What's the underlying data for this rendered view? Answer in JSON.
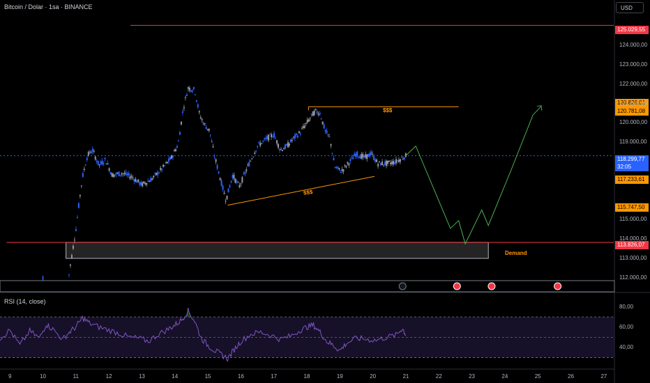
{
  "header": {
    "title": "Bitcoin / Dolar · 1sa · BINANCE",
    "currency": "USD"
  },
  "rsi_label": "RSI (14, close)",
  "colors": {
    "background": "#000000",
    "candle_up": "#2962ff",
    "candle_down": "#9598a1",
    "resistance_line": "#f23645",
    "liquidity_line": "#ff9800",
    "projection": "#4caf50",
    "current_price": "#2962ff",
    "rsi_line": "#7e57c2",
    "rsi_band": "#2a1e4a"
  },
  "price_tags": {
    "top_resistance": "125.029,55",
    "high_liquidity_1": "120.829,01",
    "high_liquidity_2": "120.781,08",
    "current_price": "118.299,77",
    "countdown": "32:05",
    "low_liquidity_1": "117.233,61",
    "low_liquidity_2": "115.747,50",
    "demand_level": "113.826,07"
  },
  "annotations": {
    "upper_liquidity": "$$$",
    "lower_liquidity": "$$$",
    "demand_zone": "Demand"
  },
  "events": [
    "lightning-icon",
    "us-flag-icon",
    "us-flag-icon",
    "us-flag-icon"
  ],
  "chart_data": {
    "type": "candlestick",
    "title": "Bitcoin / Dolar · 1sa · BINANCE",
    "x_ticks": [
      "9",
      "10",
      "11",
      "12",
      "13",
      "14",
      "15",
      "16",
      "17",
      "18",
      "19",
      "20",
      "21",
      "22",
      "23",
      "24",
      "25",
      "26",
      "27"
    ],
    "y_ticks": [
      "124.000,00",
      "123.000,00",
      "122.000,00",
      "121.000,00",
      "120.000,00",
      "119.000,00",
      "115.000,00",
      "114.000,00",
      "113.000,00",
      "112.000,00"
    ],
    "ylim": [
      111600,
      125800
    ],
    "xlim": [
      8.7,
      27.3
    ],
    "price_path": [
      [
        10.75,
        111700
      ],
      [
        10.9,
        113400
      ],
      [
        11.0,
        114500
      ],
      [
        11.1,
        115900
      ],
      [
        11.2,
        117200
      ],
      [
        11.35,
        118300
      ],
      [
        11.5,
        118600
      ],
      [
        11.7,
        117800
      ],
      [
        11.9,
        118100
      ],
      [
        12.1,
        117300
      ],
      [
        12.4,
        117400
      ],
      [
        12.7,
        117200
      ],
      [
        13.0,
        116800
      ],
      [
        13.3,
        117100
      ],
      [
        13.6,
        117600
      ],
      [
        13.9,
        118200
      ],
      [
        14.1,
        118900
      ],
      [
        14.25,
        120700
      ],
      [
        14.4,
        121800
      ],
      [
        14.6,
        121700
      ],
      [
        14.75,
        120400
      ],
      [
        14.9,
        119900
      ],
      [
        15.05,
        119600
      ],
      [
        15.2,
        118300
      ],
      [
        15.35,
        117300
      ],
      [
        15.55,
        116000
      ],
      [
        15.75,
        117300
      ],
      [
        15.95,
        116700
      ],
      [
        16.2,
        117700
      ],
      [
        16.5,
        118800
      ],
      [
        16.8,
        119200
      ],
      [
        17.0,
        119400
      ],
      [
        17.2,
        118600
      ],
      [
        17.4,
        118800
      ],
      [
        17.6,
        119200
      ],
      [
        17.8,
        119500
      ],
      [
        18.0,
        120000
      ],
      [
        18.25,
        120600
      ],
      [
        18.4,
        120500
      ],
      [
        18.55,
        119600
      ],
      [
        18.7,
        119200
      ],
      [
        18.85,
        117700
      ],
      [
        19.05,
        117500
      ],
      [
        19.25,
        117900
      ],
      [
        19.5,
        118400
      ],
      [
        19.75,
        118200
      ],
      [
        19.95,
        118400
      ],
      [
        20.15,
        117900
      ],
      [
        20.45,
        117900
      ],
      [
        20.7,
        118000
      ],
      [
        20.9,
        118200
      ],
      [
        21.0,
        118300
      ]
    ],
    "rsi": {
      "name": "RSI (14, close)",
      "ylim": [
        20,
        90
      ],
      "y_ticks": [
        "80,00",
        "60,00",
        "40,00"
      ],
      "bands": [
        70,
        30
      ],
      "midline": 50,
      "values": [
        [
          8.7,
          49
        ],
        [
          9.0,
          57
        ],
        [
          9.3,
          42
        ],
        [
          9.6,
          56
        ],
        [
          9.9,
          49
        ],
        [
          10.1,
          63
        ],
        [
          10.3,
          58
        ],
        [
          10.6,
          48
        ],
        [
          10.8,
          55
        ],
        [
          11.0,
          60
        ],
        [
          11.2,
          69
        ],
        [
          11.4,
          64
        ],
        [
          11.7,
          60
        ],
        [
          12.0,
          57
        ],
        [
          12.3,
          54
        ],
        [
          12.6,
          50
        ],
        [
          12.9,
          49
        ],
        [
          13.2,
          46
        ],
        [
          13.5,
          53
        ],
        [
          13.8,
          58
        ],
        [
          14.0,
          62
        ],
        [
          14.2,
          67
        ],
        [
          14.4,
          76
        ],
        [
          14.6,
          66
        ],
        [
          14.8,
          49
        ],
        [
          15.0,
          42
        ],
        [
          15.2,
          37
        ],
        [
          15.4,
          33
        ],
        [
          15.6,
          29
        ],
        [
          15.8,
          38
        ],
        [
          16.0,
          46
        ],
        [
          16.3,
          53
        ],
        [
          16.6,
          55
        ],
        [
          16.9,
          52
        ],
        [
          17.2,
          48
        ],
        [
          17.5,
          51
        ],
        [
          17.8,
          57
        ],
        [
          18.0,
          60
        ],
        [
          18.2,
          62
        ],
        [
          18.4,
          55
        ],
        [
          18.6,
          46
        ],
        [
          18.8,
          42
        ],
        [
          19.0,
          37
        ],
        [
          19.2,
          44
        ],
        [
          19.5,
          49
        ],
        [
          19.8,
          48
        ],
        [
          20.1,
          47
        ],
        [
          20.4,
          50
        ],
        [
          20.7,
          52
        ],
        [
          20.9,
          59
        ],
        [
          21.0,
          52
        ]
      ]
    },
    "horizontal_lines": [
      {
        "price": 125029.55,
        "from": 12.65,
        "to": 27.3,
        "style": "solid",
        "color": "#f23645"
      },
      {
        "price": 113826.07,
        "from": 8.9,
        "to": 27.3,
        "style": "solid",
        "color": "#f23645"
      },
      {
        "price": 118299.77,
        "from": 8.7,
        "to": 27.3,
        "style": "dotted",
        "color": "#2962ff"
      },
      {
        "price": 120829.01,
        "from": 18.05,
        "to": 22.6,
        "style": "solid",
        "color": "#ff9800"
      }
    ],
    "trend_lines": [
      {
        "from": [
          15.6,
          115747.5
        ],
        "to": [
          20.05,
          117233.61
        ],
        "color": "#ff9800"
      }
    ],
    "zones": [
      {
        "name": "Demand",
        "from": 10.7,
        "to": 23.5,
        "top": 113826.07,
        "bottom": 113000
      }
    ],
    "projection_path": [
      [
        21.0,
        118300
      ],
      [
        21.3,
        118800
      ],
      [
        22.35,
        114550
      ],
      [
        22.6,
        114950
      ],
      [
        22.8,
        113750
      ],
      [
        23.3,
        115500
      ],
      [
        23.5,
        114700
      ],
      [
        24.2,
        117600
      ],
      [
        24.85,
        120400
      ],
      [
        25.1,
        120850
      ]
    ],
    "low_liquidity_marker": {
      "price": 115747.5,
      "from": 15.6,
      "to": 15.8
    }
  }
}
